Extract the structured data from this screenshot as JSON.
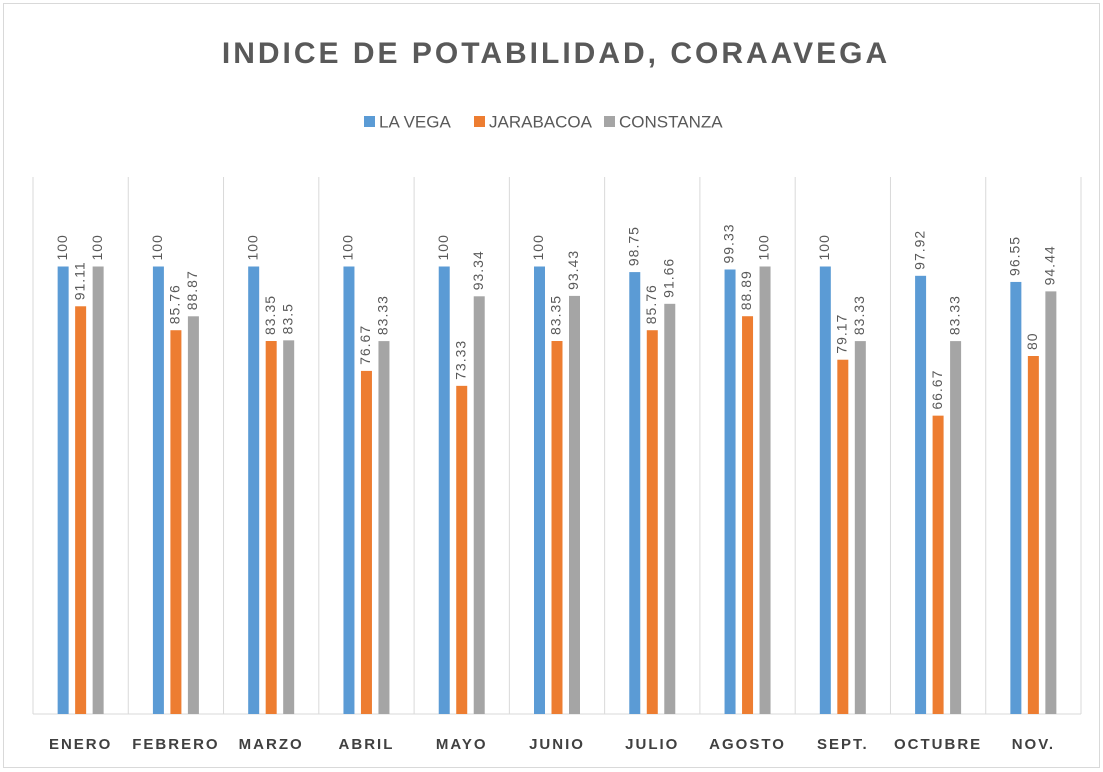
{
  "chart_data": {
    "type": "bar",
    "title": "INDICE DE POTABILIDAD, CORAAVEGA",
    "categories": [
      "ENERO",
      "FEBRERO",
      "MARZO",
      "ABRIL",
      "MAYO",
      "JUNIO",
      "JULIO",
      "AGOSTO",
      "SEPT.",
      "OCTUBRE",
      "NOV."
    ],
    "series": [
      {
        "name": "LA VEGA",
        "color": "#5b9bd5",
        "values": [
          100,
          100,
          100,
          100,
          100,
          100,
          98.75,
          99.33,
          100,
          97.92,
          96.55
        ]
      },
      {
        "name": "JARABACOA",
        "color": "#ed7d31",
        "values": [
          91.11,
          85.76,
          83.35,
          76.67,
          73.33,
          83.35,
          85.76,
          88.89,
          79.17,
          66.67,
          80
        ]
      },
      {
        "name": "CONSTANZA",
        "color": "#a5a5a5",
        "values": [
          100,
          88.87,
          83.5,
          83.33,
          93.34,
          93.43,
          91.66,
          100,
          83.33,
          83.33,
          94.44
        ]
      }
    ],
    "ylim": [
      0,
      120
    ],
    "legend": "top"
  }
}
